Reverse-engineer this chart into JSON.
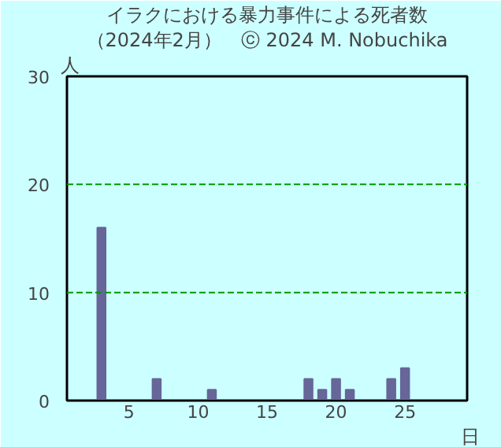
{
  "chart_data": {
    "type": "bar",
    "title": "イラクにおける暴力事件による死者数",
    "subtitle": "（2024年2月）　ⓒ 2024 M. Nobuchika",
    "xlabel": "日",
    "ylabel": "人",
    "x": [
      3,
      7,
      11,
      18,
      19,
      20,
      21,
      24,
      25
    ],
    "values": [
      16,
      2,
      1,
      2,
      1,
      2,
      1,
      2,
      3
    ],
    "color": "#666699",
    "xlim": [
      0.5,
      29.5
    ],
    "xticks": [
      5,
      10,
      15,
      20,
      25
    ],
    "ylim": [
      0,
      30
    ],
    "yticks": [
      0,
      10,
      20,
      30
    ],
    "ref_lines": [
      {
        "axis": "y",
        "value": 10,
        "color": "#009900",
        "line_style": "dashed"
      },
      {
        "axis": "y",
        "value": 20,
        "color": "#009900",
        "line_style": "dashed"
      }
    ],
    "grid": false
  }
}
